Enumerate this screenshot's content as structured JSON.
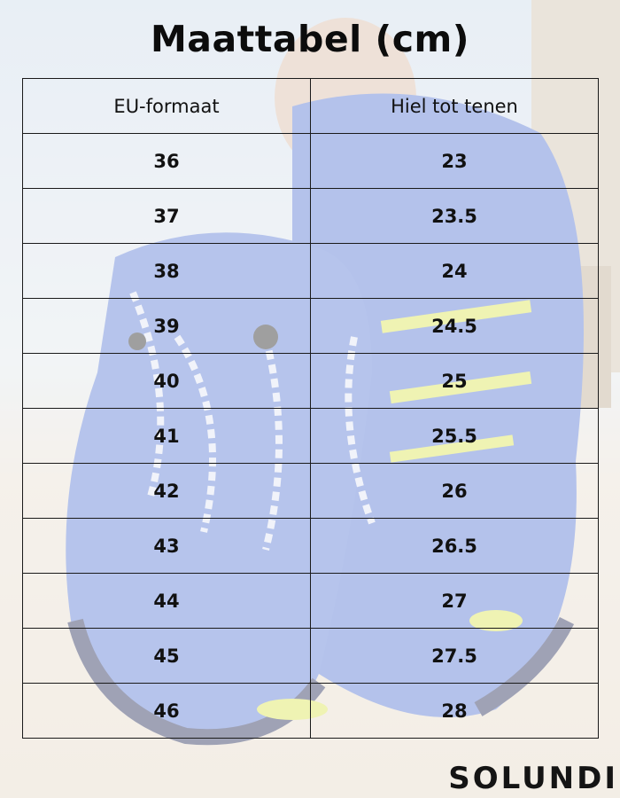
{
  "page": {
    "title": "Maattabel (cm)",
    "brand_logo_text": "SOLUNDI"
  },
  "table": {
    "headers": [
      "EU-formaat",
      "Hiel tot tenen"
    ],
    "rows": [
      [
        "36",
        "23"
      ],
      [
        "37",
        "23.5"
      ],
      [
        "38",
        "24"
      ],
      [
        "39",
        "24.5"
      ],
      [
        "40",
        "25"
      ],
      [
        "41",
        "25.5"
      ],
      [
        "42",
        "26"
      ],
      [
        "43",
        "26.5"
      ],
      [
        "44",
        "27"
      ],
      [
        "45",
        "27.5"
      ],
      [
        "46",
        "28"
      ]
    ]
  },
  "colors": {
    "text": "#111111",
    "border": "#1a1a1a",
    "shoe_blue": "#3f63c9",
    "shoe_yellow": "#d9e24a",
    "sky": "#dfe7ef",
    "sand": "#e8dccb"
  }
}
